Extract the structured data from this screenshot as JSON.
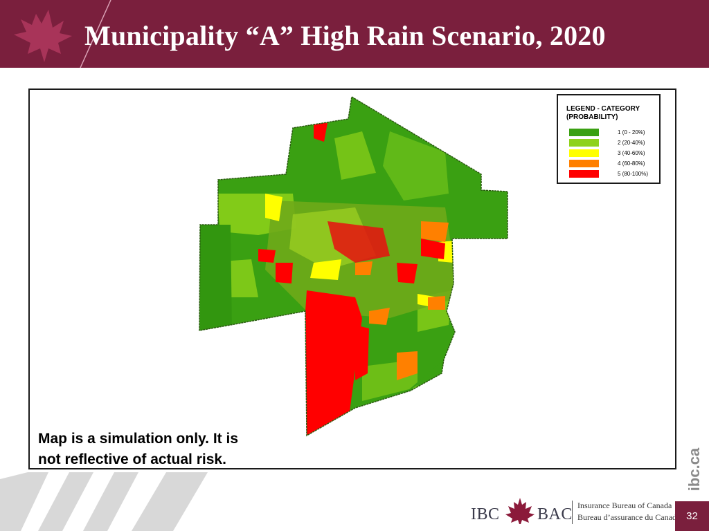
{
  "header": {
    "title": "Municipality “A” High Rain Scenario, 2020",
    "background_color": "#7a1f3d",
    "logo_icon": "maple-leaf-icon"
  },
  "legend": {
    "title": "LEGEND - CATEGORY (PROBABILITY)",
    "items": [
      {
        "label": "1 (0 - 20%)",
        "color": "#3aa012"
      },
      {
        "label": "2 (20-40%)",
        "color": "#8fd21a"
      },
      {
        "label": "3 (40-60%)",
        "color": "#ffff00"
      },
      {
        "label": "4 (60-80%)",
        "color": "#ff8000"
      },
      {
        "label": "5 (80-100%)",
        "color": "#ff0000"
      }
    ]
  },
  "disclaimer": {
    "line1": "Map is a simulation only. It is",
    "line2": "not reflective of actual risk."
  },
  "footer": {
    "url": "ibc.ca",
    "logo_left": "IBC",
    "logo_right": "BAC",
    "logo_en": "Insurance Bureau of Canada",
    "logo_fr": "Bureau d’assurance du Canada",
    "page_number": "32"
  }
}
